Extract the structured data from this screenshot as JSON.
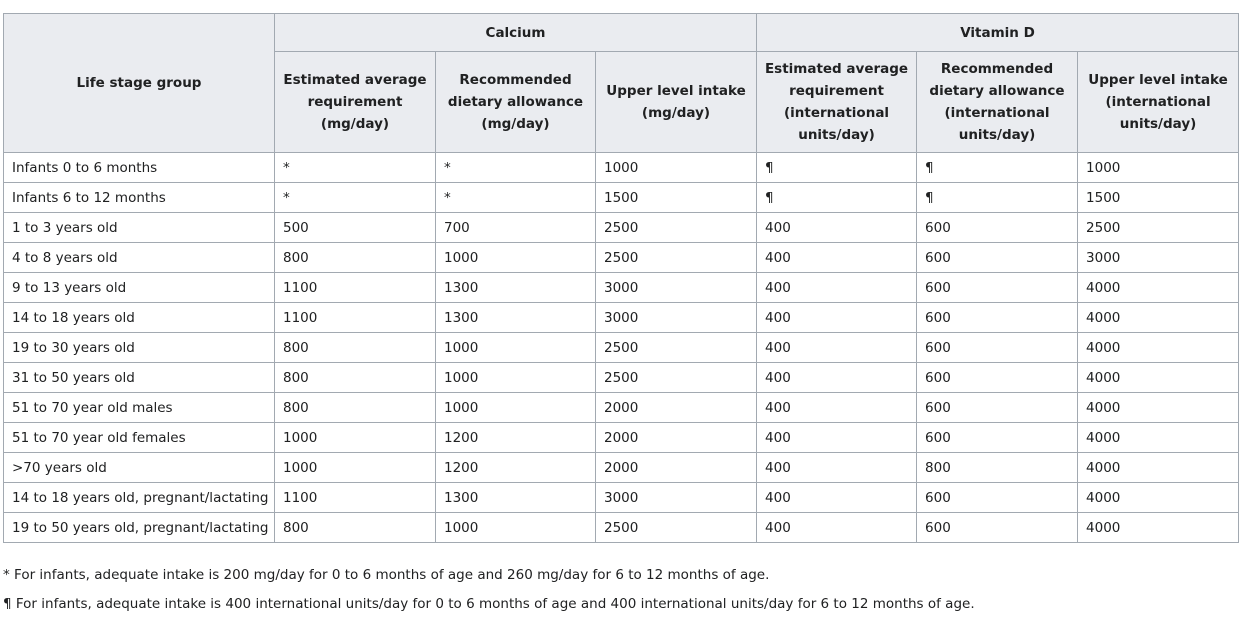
{
  "table": {
    "header": {
      "life_stage": "Life stage group",
      "calcium": "Calcium",
      "vitamin_d": "Vitamin D",
      "calcium_cols": [
        "Estimated average requirement (mg/day)",
        "Recommended dietary allowance (mg/day)",
        "Upper level intake (mg/day)"
      ],
      "vitamin_d_cols": [
        "Estimated average requirement (international units/day)",
        "Recommended dietary allowance (international units/day)",
        "Upper level intake (international units/day)"
      ]
    },
    "rows": [
      [
        "Infants 0 to 6 months",
        "*",
        "*",
        "1000",
        "¶",
        "¶",
        "1000"
      ],
      [
        "Infants 6 to 12 months",
        "*",
        "*",
        "1500",
        "¶",
        "¶",
        "1500"
      ],
      [
        "1 to 3 years old",
        "500",
        "700",
        "2500",
        "400",
        "600",
        "2500"
      ],
      [
        "4 to 8 years old",
        "800",
        "1000",
        "2500",
        "400",
        "600",
        "3000"
      ],
      [
        "9 to 13 years old",
        "1100",
        "1300",
        "3000",
        "400",
        "600",
        "4000"
      ],
      [
        "14 to 18 years old",
        "1100",
        "1300",
        "3000",
        "400",
        "600",
        "4000"
      ],
      [
        "19 to 30 years old",
        "800",
        "1000",
        "2500",
        "400",
        "600",
        "4000"
      ],
      [
        "31 to 50 years old",
        "800",
        "1000",
        "2500",
        "400",
        "600",
        "4000"
      ],
      [
        "51 to 70 year old males",
        "800",
        "1000",
        "2000",
        "400",
        "600",
        "4000"
      ],
      [
        "51 to 70 year old females",
        "1000",
        "1200",
        "2000",
        "400",
        "600",
        "4000"
      ],
      [
        ">70 years old",
        "1000",
        "1200",
        "2000",
        "400",
        "800",
        "4000"
      ],
      [
        "14 to 18 years old, pregnant/lactating",
        "1100",
        "1300",
        "3000",
        "400",
        "600",
        "4000"
      ],
      [
        "19 to 50 years old, pregnant/lactating",
        "800",
        "1000",
        "2500",
        "400",
        "600",
        "4000"
      ]
    ]
  },
  "footnotes": {
    "asterisk": "* For infants, adequate intake is 200 mg/day for 0 to 6 months of age and 260 mg/day for 6 to 12 months of age.",
    "pilcrow": "¶ For infants, adequate intake is 400 international units/day for 0 to 6 months of age and 400 international units/day for 6 to 12 months of age."
  }
}
